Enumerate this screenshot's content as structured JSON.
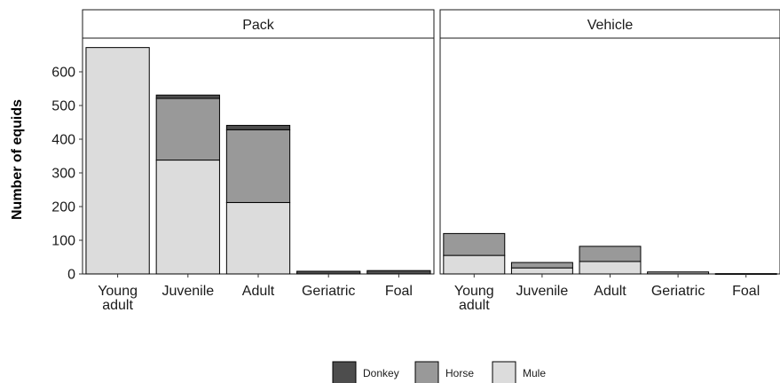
{
  "chart_data": {
    "type": "bar",
    "stacked": true,
    "ylabel": "Number of equids",
    "xlabel": "",
    "ylim": [
      0,
      700
    ],
    "yticks": [
      0,
      100,
      200,
      300,
      400,
      500,
      600
    ],
    "categories": [
      "Young\nadult",
      "Juvenile",
      "Adult",
      "Geriatric",
      "Foal"
    ],
    "stack_order": [
      "Mule",
      "Horse",
      "Donkey"
    ],
    "legend": {
      "position": "bottom",
      "entries": [
        {
          "name": "Donkey",
          "color": "#4d4d4d"
        },
        {
          "name": "Horse",
          "color": "#999999"
        },
        {
          "name": "Mule",
          "color": "#dcdcdc"
        }
      ]
    },
    "grid": false,
    "panels": [
      {
        "title": "Pack",
        "series": [
          {
            "name": "Mule",
            "values": [
              672,
              338,
              212,
              0,
              0
            ]
          },
          {
            "name": "Horse",
            "values": [
              0,
              183,
              216,
              0,
              0
            ]
          },
          {
            "name": "Donkey",
            "values": [
              0,
              10,
              13,
              8,
              10
            ]
          }
        ]
      },
      {
        "title": "Vehicle",
        "series": [
          {
            "name": "Mule",
            "values": [
              55,
              18,
              37,
              0,
              0
            ]
          },
          {
            "name": "Horse",
            "values": [
              65,
              16,
              45,
              6,
              0
            ]
          },
          {
            "name": "Donkey",
            "values": [
              0,
              0,
              0,
              0,
              1
            ]
          }
        ]
      }
    ]
  }
}
